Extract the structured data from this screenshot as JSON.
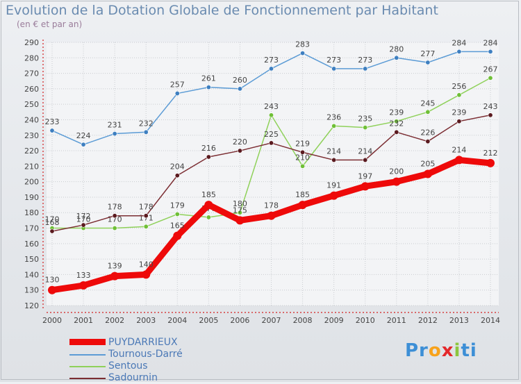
{
  "header": {
    "title": "Evolution de la Dotation Globale de Fonctionnement par Habitant",
    "subtitle": "(en € et par an)"
  },
  "logo": {
    "p": "Pr",
    "o": "o",
    "x": "x",
    "i": "i",
    "ti": "ti"
  },
  "chart_data": {
    "type": "line",
    "x": [
      "2000",
      "2001",
      "2002",
      "2003",
      "2004",
      "2005",
      "2006",
      "2007",
      "2008",
      "2009",
      "2010",
      "2011",
      "2012",
      "2013",
      "2014"
    ],
    "ylim": [
      120,
      290
    ],
    "yticks": [
      120,
      130,
      140,
      150,
      160,
      170,
      180,
      190,
      200,
      210,
      220,
      230,
      240,
      250,
      260,
      270,
      280,
      290
    ],
    "grid": true,
    "series": [
      {
        "name": "Tournous-Darré",
        "color": "#5b9bd5",
        "marker": "#3e7fc0",
        "values": [
          233,
          224,
          231,
          232,
          257,
          261,
          260,
          273,
          283,
          273,
          273,
          280,
          277,
          284,
          284
        ]
      },
      {
        "name": "Sentous",
        "color": "#8fd15a",
        "marker": "#6fbf37",
        "values": [
          170,
          170,
          170,
          171,
          179,
          177,
          180,
          243,
          210,
          236,
          235,
          239,
          245,
          256,
          267
        ]
      },
      {
        "name": "Sadournin",
        "color": "#7b2d32",
        "marker": "#5a1a1f",
        "values": [
          168,
          172,
          178,
          178,
          204,
          216,
          220,
          225,
          219,
          214,
          214,
          232,
          226,
          239,
          243
        ]
      },
      {
        "name": "PUYDARRIEUX",
        "color": "#ee0a0a",
        "marker": "#ee0a0a",
        "values": [
          130,
          133,
          139,
          140,
          165,
          185,
          175,
          178,
          185,
          191,
          197,
          200,
          205,
          214,
          212
        ]
      }
    ],
    "legend": [
      "PUYDARRIEUX",
      "Tournous-Darré",
      "Sentous",
      "Sadournin"
    ],
    "legend_position": "bottom-left"
  }
}
